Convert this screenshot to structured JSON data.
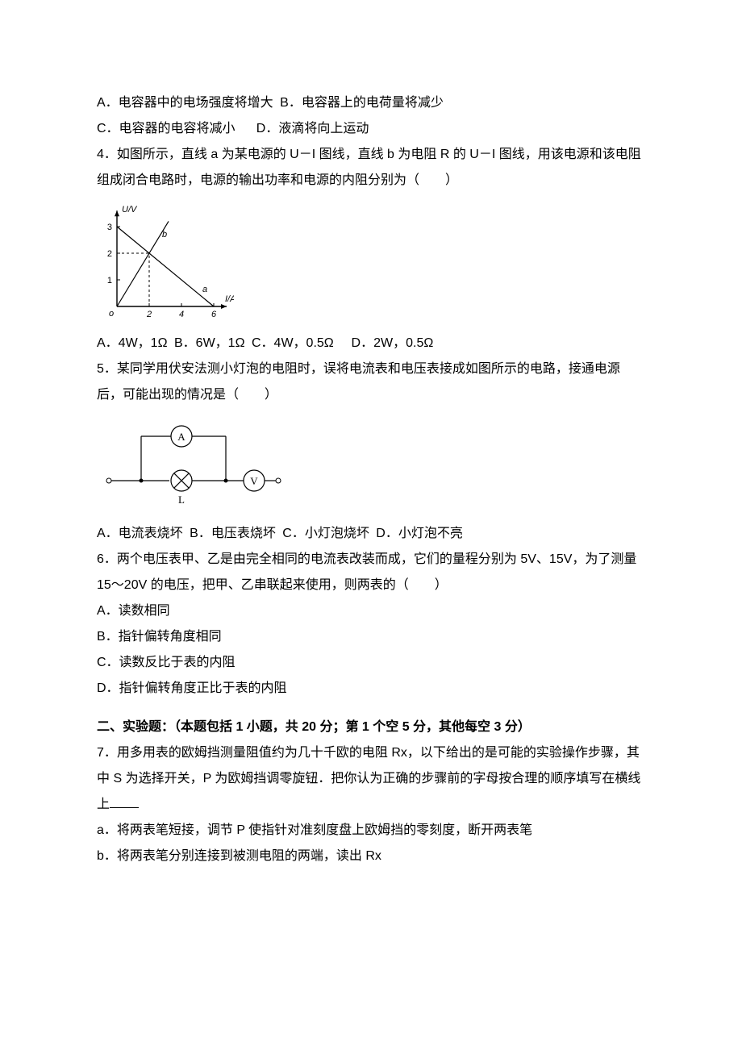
{
  "q3": {
    "optA": "A．电容器中的电场强度将增大",
    "optB": "B．电容器上的电荷量将减少",
    "optC": "C．电容器的电容将减小",
    "optD": "D．液滴将向上运动"
  },
  "q4": {
    "stem": "4．如图所示，直线 a 为某电源的 U－I 图线，直线 b 为电阻 R 的 U－I 图线，用该电源和该电阻组成闭合电路时，电源的输出功率和电源的内阻分别为（　　）",
    "chart": {
      "type": "line",
      "x_label": "I/A",
      "y_label": "U/V",
      "xlim": [
        0,
        6
      ],
      "ylim": [
        0,
        3.3
      ],
      "x_ticks": [
        2,
        4,
        6
      ],
      "y_ticks": [
        1,
        2,
        3
      ],
      "series": {
        "a": {
          "points": [
            [
              0,
              3
            ],
            [
              6,
              0
            ]
          ],
          "label": "a",
          "color": "#000000",
          "width": 1.2
        },
        "b": {
          "points": [
            [
              0,
              0
            ],
            [
              3.2,
              3.2
            ]
          ],
          "label": "b",
          "color": "#000000",
          "width": 1.2
        }
      },
      "dash_guides": [
        [
          2,
          0,
          2,
          2
        ],
        [
          0,
          2,
          2,
          2
        ]
      ],
      "arrow_color": "#000000",
      "axis_color": "#000000",
      "dash_color": "#000000",
      "label_fontsize": 11
    },
    "optA": "A．4W，1Ω",
    "optB": "B．6W，1Ω",
    "optC": "C．4W，0.5Ω",
    "optD": "D．2W，0.5Ω"
  },
  "q5": {
    "stem": "5．某同学用伏安法测小灯泡的电阻时，误将电流表和电压表接成如图所示的电路，接通电源后，可能出现的情况是（　　）",
    "diagram": {
      "type": "circuit",
      "ammeter_label": "A",
      "voltmeter_label": "V",
      "lamp_label": "L",
      "wire_color": "#000000",
      "wire_width": 1.2,
      "node_radius": 2.5,
      "node_open": false,
      "text_color": "#000000",
      "font_family": "serif"
    },
    "optA": "A．电流表烧坏",
    "optB": "B．电压表烧坏",
    "optC": "C．小灯泡烧坏",
    "optD": "D．小灯泡不亮"
  },
  "q6": {
    "stem": "6．两个电压表甲、乙是由完全相同的电流表改装而成，它们的量程分别为 5V、15V，为了测量 15～20V 的电压，把甲、乙串联起来使用，则两表的（　　）",
    "optA": "A．读数相同",
    "optB": "B．指针偏转角度相同",
    "optC": "C．读数反比于表的内阻",
    "optD": "D．指针偏转角度正比于表的内阻"
  },
  "section2": {
    "heading": "二、实验题：（本题包括 1 小题，共 20 分；第 1 个空 5 分，其他每空 3 分）"
  },
  "q7": {
    "stem_part1": "7．用多用表的欧姆挡测量阻值约为几十千欧的电阻 Rx，以下给出的是可能的实验操作步骤，其中 S 为选择开关，P 为欧姆挡调零旋钮．把你认为正确的步骤前的字母按合理的顺序填写在横线上",
    "step_a": "a．将两表笔短接，调节 P 使指针对准刻度盘上欧姆挡的零刻度，断开两表笔",
    "step_b": "b．将两表笔分别连接到被测电阻的两端，读出 Rx"
  }
}
